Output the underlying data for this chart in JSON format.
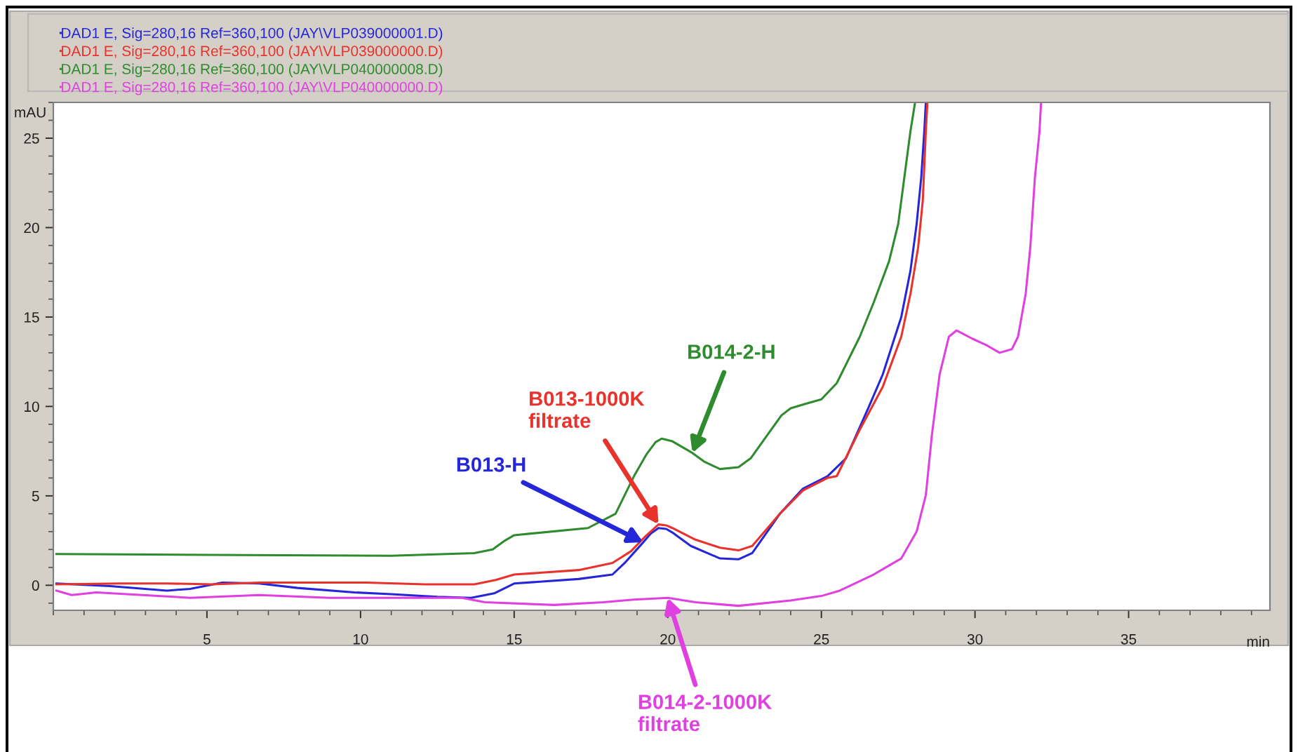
{
  "chart_data": {
    "type": "line",
    "xlabel": "min",
    "ylabel": "mAU",
    "xlim": [
      0,
      39.6
    ],
    "ylim": [
      -1.4,
      27
    ],
    "xticks": [
      5,
      10,
      15,
      20,
      25,
      30,
      35
    ],
    "yticks": [
      0,
      5,
      10,
      15,
      20,
      25
    ],
    "legend": "top left",
    "line_style": "solid",
    "series": [
      {
        "name": "DAD1 E, Sig=280,16 Ref=360,100 (JAY\\VLP039000001.D)",
        "color": "#2626d9",
        "x": [
          0.1,
          1.85,
          3.7,
          4.45,
          5.5,
          6.7,
          7.95,
          9.8,
          11.0,
          12.5,
          13.6,
          14.35,
          15.0,
          17.1,
          18.2,
          18.6,
          19.2,
          19.45,
          19.7,
          19.95,
          20.15,
          20.75,
          21.7,
          22.3,
          22.75,
          23.65,
          24.4,
          25.2,
          25.8,
          26.55,
          27.0,
          27.6,
          27.9,
          28.1,
          28.25,
          28.35,
          28.4
        ],
        "values": [
          0.1,
          -0.05,
          -0.3,
          -0.2,
          0.15,
          0.1,
          -0.15,
          -0.4,
          -0.5,
          -0.65,
          -0.7,
          -0.45,
          0.1,
          0.35,
          0.6,
          1.25,
          2.4,
          2.9,
          3.2,
          3.15,
          2.95,
          2.2,
          1.5,
          1.45,
          1.8,
          4.0,
          5.4,
          6.1,
          7.1,
          10.0,
          11.8,
          15.0,
          17.6,
          20.2,
          22.8,
          25.4,
          27.0
        ]
      },
      {
        "name": "DAD1 E, Sig=280,16 Ref=360,100 (JAY\\VLP039000000.D)",
        "color": "#e8322c",
        "x": [
          0.1,
          2.2,
          3.7,
          5.2,
          6.7,
          8.25,
          10.2,
          12.1,
          13.7,
          14.4,
          15.0,
          17.1,
          18.2,
          18.8,
          19.25,
          19.7,
          19.95,
          20.15,
          20.9,
          21.7,
          22.3,
          22.75,
          23.65,
          24.4,
          25.2,
          25.5,
          26.25,
          27.0,
          27.6,
          27.9,
          28.15,
          28.3,
          28.4,
          28.45
        ],
        "values": [
          0.05,
          0.1,
          0.1,
          0.05,
          0.15,
          0.15,
          0.15,
          0.05,
          0.05,
          0.3,
          0.6,
          0.85,
          1.25,
          1.9,
          2.7,
          3.4,
          3.35,
          3.2,
          2.55,
          2.1,
          1.95,
          2.2,
          4.0,
          5.3,
          6.0,
          6.1,
          8.7,
          11.1,
          13.9,
          16.3,
          18.9,
          21.5,
          25.4,
          27.0
        ]
      },
      {
        "name": "DAD1 E, Sig=280,16 Ref=360,100 (JAY\\VLP040000008.D)",
        "color": "#2e8b2e",
        "x": [
          0.1,
          5.0,
          11.0,
          13.7,
          14.3,
          14.7,
          15.0,
          15.6,
          17.4,
          18.3,
          18.9,
          19.3,
          19.6,
          19.8,
          20.15,
          20.8,
          21.2,
          21.7,
          22.3,
          22.7,
          23.2,
          23.7,
          24.0,
          24.4,
          25.0,
          25.5,
          26.25,
          26.7,
          27.2,
          27.5,
          27.7,
          27.9,
          28.05
        ],
        "values": [
          1.75,
          1.7,
          1.65,
          1.8,
          2.0,
          2.5,
          2.8,
          2.9,
          3.2,
          4.0,
          6.1,
          7.3,
          8.0,
          8.2,
          8.05,
          7.4,
          6.9,
          6.5,
          6.6,
          7.1,
          8.3,
          9.5,
          9.9,
          10.1,
          10.4,
          11.3,
          13.9,
          15.8,
          18.1,
          20.2,
          22.8,
          25.4,
          27.0
        ]
      },
      {
        "name": "DAD1 E, Sig=280,16 Ref=360,100 (JAY\\VLP040000000.D)",
        "color": "#e040e0",
        "x": [
          0.1,
          0.6,
          1.4,
          2.9,
          4.45,
          6.7,
          9.0,
          11.3,
          13.3,
          14.05,
          16.3,
          17.9,
          18.9,
          20.0,
          20.9,
          22.3,
          24.0,
          25.0,
          25.6,
          26.7,
          27.6,
          28.1,
          28.4,
          28.6,
          28.85,
          29.15,
          29.4,
          29.9,
          30.4,
          30.8,
          31.2,
          31.4,
          31.65,
          31.8,
          31.95,
          32.1,
          32.15
        ],
        "values": [
          -0.3,
          -0.55,
          -0.4,
          -0.55,
          -0.7,
          -0.55,
          -0.7,
          -0.7,
          -0.7,
          -0.95,
          -1.1,
          -0.95,
          -0.8,
          -0.7,
          -0.95,
          -1.15,
          -0.85,
          -0.6,
          -0.3,
          0.6,
          1.5,
          3.0,
          5.05,
          8.45,
          11.8,
          13.9,
          14.25,
          13.8,
          13.4,
          13.0,
          13.2,
          13.9,
          16.3,
          18.9,
          22.8,
          25.4,
          27.0
        ]
      }
    ],
    "annotations": [
      {
        "text": "B013-H",
        "x": 19.2,
        "y": 2.4
      },
      {
        "text": "B013-1000K\nfiltrate",
        "x": 19.7,
        "y": 3.4
      },
      {
        "text": "B014-2-H",
        "x": 20.8,
        "y": 7.4
      },
      {
        "text": "B014-2-1000K\nfiltrate",
        "x": 20.0,
        "y": -0.7
      }
    ]
  }
}
